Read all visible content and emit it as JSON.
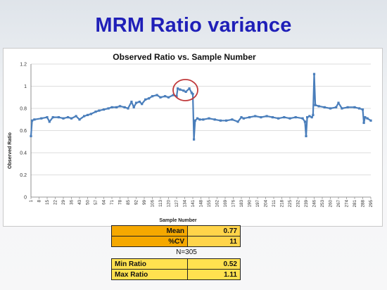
{
  "slide": {
    "title": "MRM Ratio variance"
  },
  "chart_data": {
    "type": "line",
    "title": "Observed Ratio vs. Sample Number",
    "xlabel": "Sample Number",
    "ylabel": "Observed Ratio",
    "ylim": [
      0,
      1.2
    ],
    "yticks": [
      "0",
      "0.2",
      "0.4",
      "0.6",
      "0.8",
      "1",
      "1.2"
    ],
    "xlim": [
      1,
      295
    ],
    "xticks": [
      1,
      8,
      15,
      22,
      29,
      36,
      43,
      50,
      57,
      64,
      71,
      78,
      85,
      92,
      99,
      106,
      113,
      120,
      127,
      134,
      141,
      148,
      155,
      162,
      169,
      176,
      183,
      190,
      197,
      204,
      211,
      218,
      225,
      232,
      239,
      246,
      253,
      260,
      267,
      274,
      281,
      288,
      295
    ],
    "grid": true,
    "series_color": "#4a7ebb",
    "highlight_color": "#c0393b",
    "highlight_range": [
      127,
      141
    ],
    "series": [
      {
        "x": [
          1,
          2,
          4,
          10,
          15,
          17,
          20,
          25,
          29,
          33,
          36,
          40,
          43,
          47,
          50,
          53,
          57,
          60,
          64,
          68,
          71,
          75,
          78,
          82,
          85,
          88,
          90,
          92,
          95,
          97,
          100,
          103,
          106,
          110,
          113,
          117,
          120,
          124,
          127,
          128,
          130,
          133,
          135,
          138,
          140,
          141,
          142,
          143,
          145,
          147,
          150,
          155,
          160,
          165,
          170,
          175,
          180,
          183,
          185,
          190,
          195,
          200,
          205,
          210,
          215,
          220,
          225,
          230,
          236,
          238,
          239,
          240,
          242,
          244,
          245,
          246,
          247,
          250,
          255,
          260,
          265,
          267,
          270,
          275,
          281,
          285,
          288,
          289,
          290,
          292,
          295
        ],
        "y": [
          0.55,
          0.69,
          0.7,
          0.71,
          0.72,
          0.68,
          0.72,
          0.72,
          0.71,
          0.72,
          0.71,
          0.73,
          0.7,
          0.73,
          0.74,
          0.75,
          0.77,
          0.78,
          0.79,
          0.8,
          0.81,
          0.81,
          0.82,
          0.81,
          0.8,
          0.86,
          0.81,
          0.85,
          0.86,
          0.84,
          0.88,
          0.89,
          0.91,
          0.92,
          0.9,
          0.91,
          0.9,
          0.92,
          0.91,
          0.98,
          0.97,
          0.96,
          0.95,
          0.98,
          0.94,
          0.93,
          0.52,
          0.69,
          0.71,
          0.7,
          0.7,
          0.71,
          0.7,
          0.69,
          0.69,
          0.7,
          0.68,
          0.72,
          0.71,
          0.72,
          0.73,
          0.72,
          0.73,
          0.72,
          0.71,
          0.72,
          0.71,
          0.72,
          0.71,
          0.68,
          0.55,
          0.72,
          0.73,
          0.72,
          0.74,
          1.11,
          0.83,
          0.82,
          0.81,
          0.8,
          0.81,
          0.85,
          0.8,
          0.81,
          0.81,
          0.8,
          0.79,
          0.67,
          0.72,
          0.71,
          0.69
        ]
      }
    ]
  },
  "stats": {
    "mean_label": "Mean",
    "mean_value": "0.77",
    "cv_label": "%CV",
    "cv_value": "11",
    "n_label": "N=305",
    "min_label": "Min Ratio",
    "min_value": "0.52",
    "max_label": "Max Ratio",
    "max_value": "1.11"
  }
}
